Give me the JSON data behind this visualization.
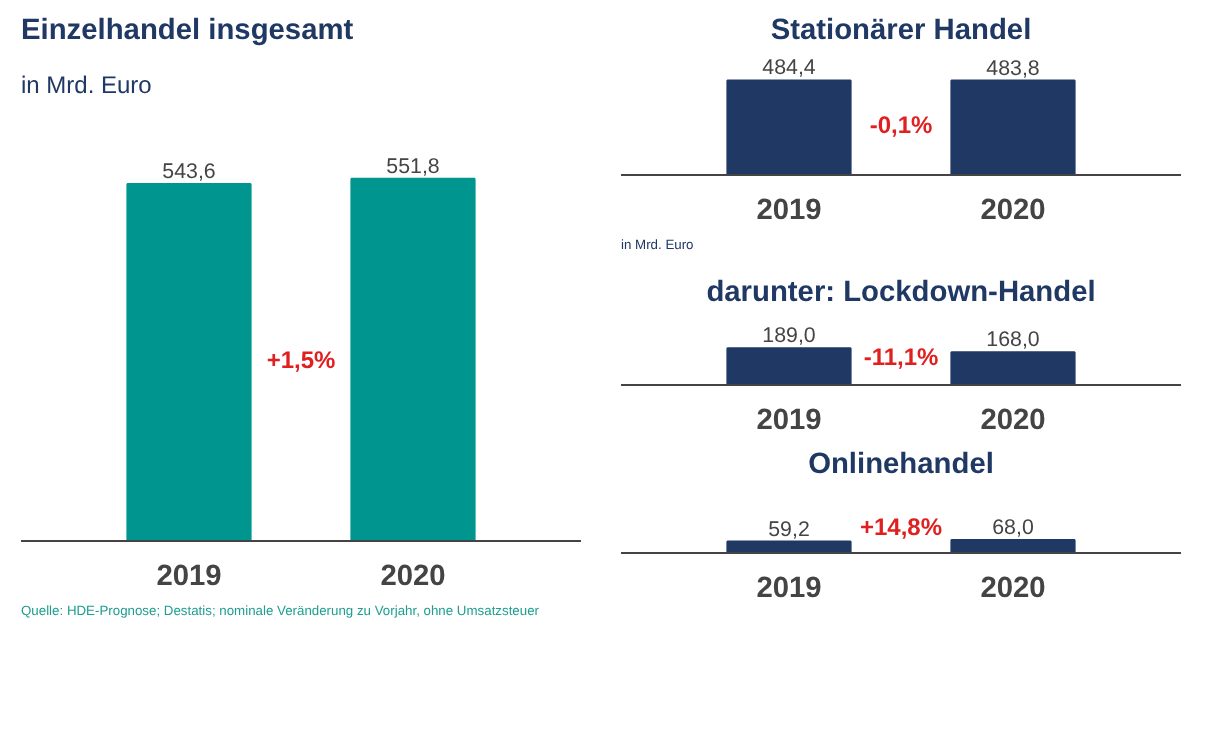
{
  "chart_data": [
    {
      "type": "bar",
      "title": "Einzelhandel insgesamt",
      "subtitle": "in Mrd. Euro",
      "categories": [
        "2019",
        "2020"
      ],
      "values": [
        543.6,
        551.8
      ],
      "value_labels": [
        "543,6",
        "551,8"
      ],
      "color": "#00968f",
      "tick_labels": "x",
      "grid": false,
      "annotations": [
        "+1,5%",
        "Quelle: HDE-Prognose; Destatis; nominale Veränderung zu Vorjahr, ohne Umsatzsteuer"
      ]
    },
    {
      "type": "bar",
      "title": "Stationärer Handel",
      "categories": [
        "2019",
        "2020"
      ],
      "values": [
        484.4,
        483.8
      ],
      "value_labels": [
        "484,4",
        "483,8"
      ],
      "color": "#1f3864",
      "tick_labels": "x",
      "grid": false,
      "annotations": [
        "-0,1%",
        "in Mrd. Euro"
      ]
    },
    {
      "type": "bar",
      "title": "darunter: Lockdown-Handel",
      "categories": [
        "2019",
        "2020"
      ],
      "values": [
        189.0,
        168.0
      ],
      "value_labels": [
        "189,0",
        "168,0"
      ],
      "color": "#1f3864",
      "tick_labels": "x",
      "grid": false,
      "annotations": [
        "-11,1%"
      ]
    },
    {
      "type": "bar",
      "title": "Onlinehandel",
      "categories": [
        "2019",
        "2020"
      ],
      "values": [
        59.2,
        68.0
      ],
      "value_labels": [
        "59,2",
        "68,0"
      ],
      "color": "#1f3864",
      "tick_labels": "x",
      "grid": false,
      "annotations": [
        "+14,8%"
      ]
    }
  ]
}
